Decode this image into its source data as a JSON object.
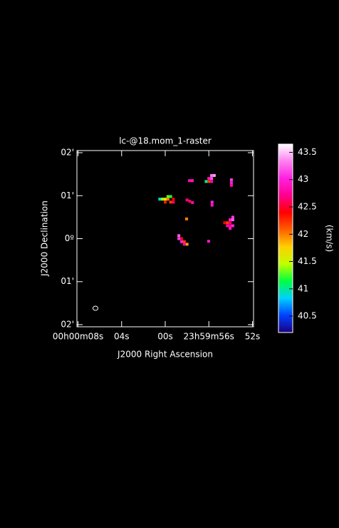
{
  "chart_data": {
    "type": "raster",
    "title": "lc-@18.mom_1-raster",
    "xlabel": "J2000 Right Ascension",
    "ylabel": "J2000 Declination",
    "colorbar_label": "(km/s)",
    "xlim": [
      8.1,
      -8.1
    ],
    "ylim": [
      -2.05,
      2.05
    ],
    "xticks": [
      {
        "value": 8,
        "label": "00h00m08s"
      },
      {
        "value": 4,
        "label": "04s"
      },
      {
        "value": 0,
        "label": "00s"
      },
      {
        "value": -4,
        "label": "23h59m56s"
      },
      {
        "value": -8,
        "label": "52s"
      }
    ],
    "yticks": [
      {
        "value": 2,
        "label": "02'"
      },
      {
        "value": 1,
        "label": "01'"
      },
      {
        "value": 0,
        "label": "0º"
      },
      {
        "value": -1,
        "label": "01'"
      },
      {
        "value": -2,
        "label": "02'"
      }
    ],
    "clim": [
      40.2,
      43.65
    ],
    "cticks": [
      40.5,
      41,
      41.5,
      42,
      42.5,
      43,
      43.5
    ],
    "colormap": [
      "#1a0080",
      "#0040ff",
      "#00d0ff",
      "#00ff40",
      "#c0ff00",
      "#ffd000",
      "#ff6000",
      "#ff0000",
      "#ff0090",
      "#ff20e0",
      "#ff80f0",
      "#ffffff"
    ],
    "pixels": {
      "x": [
        -4.25,
        -4.0,
        -3.75,
        -4.0,
        -4.25,
        -4.5,
        -4.25,
        -2.48,
        -2.22,
        -6.07,
        -6.07,
        -6.07,
        0.5,
        0.25,
        0,
        -0.25,
        -0.5,
        -0.25,
        -0.5,
        -0.75,
        -0.75,
        0,
        -2.0,
        -2.25,
        -2.5,
        -4.3,
        -4.3,
        -5.7,
        -5.45,
        -5.95,
        -5.7,
        -5.95,
        -5.95,
        -6.2,
        -6.2,
        -5.95,
        -6.2,
        -1.96,
        -1.5,
        -1.75,
        -2.0,
        -1.5,
        -1.25,
        -1.75,
        -1.25,
        -3.98
      ],
      "y": [
        1.4,
        1.4,
        1.33,
        1.33,
        1.33,
        1.47,
        1.47,
        1.35,
        1.35,
        1.3,
        1.24,
        1.37,
        0.92,
        0.92,
        0.92,
        0.98,
        0.98,
        0.92,
        0.85,
        0.85,
        0.92,
        0.85,
        0.9,
        0.87,
        0.84,
        0.85,
        0.78,
        0.37,
        0.37,
        0.37,
        0.3,
        0.3,
        0.44,
        0.5,
        0.44,
        0.24,
        0.3,
        0.46,
        0.0,
        -0.07,
        -0.13,
        -0.07,
        0.07,
        -0.13,
        0.0,
        -0.06
      ],
      "values": [
        43.2,
        42.9,
        41.0,
        42.2,
        42.8,
        43.4,
        43.3,
        42.9,
        42.8,
        43.0,
        42.8,
        43.1,
        40.9,
        41.4,
        41.6,
        41.3,
        41.2,
        42.0,
        42.2,
        42.6,
        42.4,
        42.3,
        42.7,
        42.6,
        42.8,
        43.0,
        42.9,
        42.2,
        42.4,
        42.6,
        42.8,
        42.7,
        43.0,
        43.1,
        43.2,
        42.9,
        43.0,
        42.0,
        42.5,
        42.2,
        41.9,
        43.0,
        43.2,
        42.8,
        43.1,
        42.9
      ]
    }
  }
}
